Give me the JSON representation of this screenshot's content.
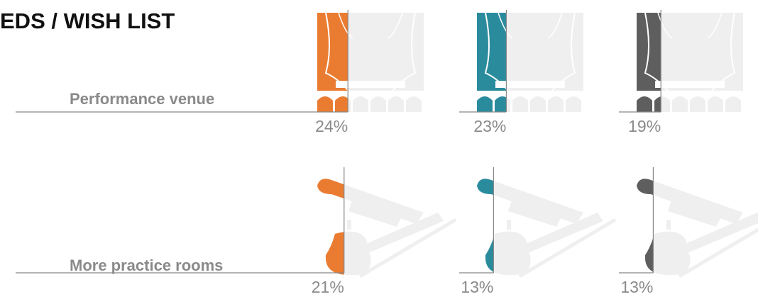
{
  "chart_data": {
    "type": "pictogram",
    "title": "EDS / WISH LIST",
    "categories": [
      "Performance venue",
      "More practice rooms"
    ],
    "series": [
      {
        "color": "#ea7c31",
        "values": [
          24,
          21
        ],
        "value_labels": [
          "24%",
          "21%"
        ]
      },
      {
        "color": "#2a8b9d",
        "values": [
          23,
          13
        ],
        "value_labels": [
          "23%",
          "13%"
        ]
      },
      {
        "color": "#5e5e5e",
        "values": [
          19,
          13
        ],
        "value_labels": [
          "19%",
          "13%"
        ]
      }
    ]
  }
}
